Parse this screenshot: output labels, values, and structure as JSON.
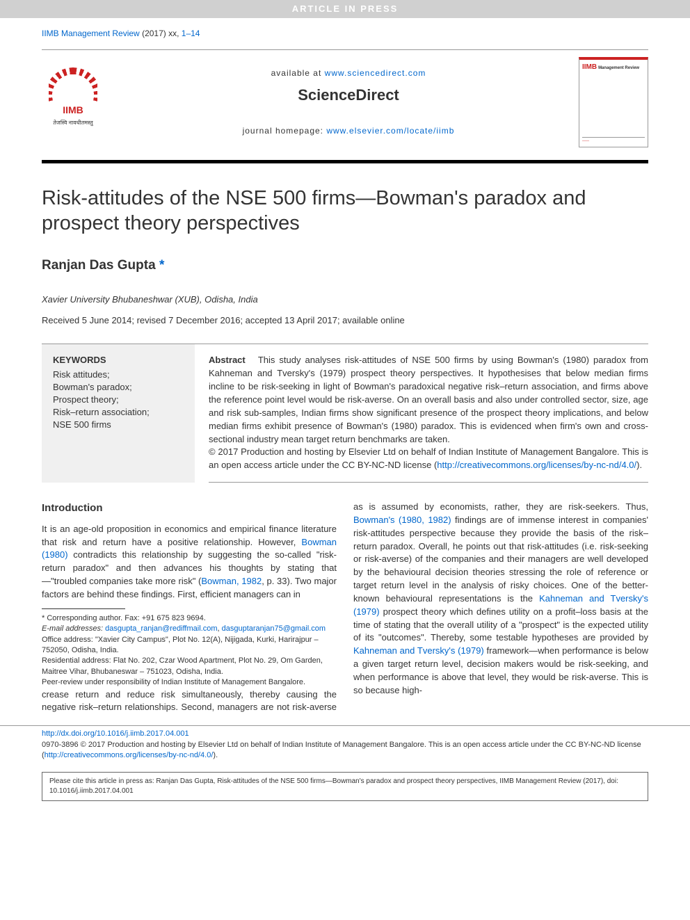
{
  "banner": "ARTICLE IN PRESS",
  "journal_ref": {
    "name": "IIMB Management Review",
    "year": "(2017)",
    "vol": "xx",
    "pages": "1–14"
  },
  "header": {
    "available_prefix": "available at ",
    "available_link": "www.sciencedirect.com",
    "brand": "ScienceDirect",
    "homepage_prefix": "journal homepage: ",
    "homepage_link": "www.elsevier.com/locate/iimb",
    "logo_name": "IIMB",
    "logo_tagline": "तेजस्वि नावधीतमस्तु",
    "cover_title": "IIMB",
    "cover_sub": "Management Review"
  },
  "article": {
    "title": "Risk-attitudes of the NSE 500 firms—Bowman's paradox and prospect theory perspectives",
    "author": "Ranjan Das Gupta",
    "asterisk": "*",
    "affiliation": "Xavier University Bhubaneshwar (XUB), Odisha, India",
    "dates": "Received 5 June 2014; revised 7 December 2016; accepted 13 April 2017; available online"
  },
  "keywords": {
    "heading": "KEYWORDS",
    "items": "Risk attitudes;\nBowman's paradox;\nProspect theory;\nRisk–return association;\nNSE 500 firms"
  },
  "abstract": {
    "label": "Abstract",
    "body": "This study analyses risk-attitudes of NSE 500 firms by using Bowman's (1980) paradox from Kahneman and Tversky's (1979) prospect theory perspectives. It hypothesises that below median firms incline to be risk-seeking in light of Bowman's paradoxical negative risk–return association, and firms above the reference point level would be risk-averse. On an overall basis and also under controlled sector, size, age and risk sub-samples, Indian firms show significant presence of the prospect theory implications, and below median firms exhibit presence of Bowman's (1980) paradox. This is evidenced when firm's own and cross-sectional industry mean target return benchmarks are taken.",
    "copyright": "© 2017 Production and hosting by Elsevier Ltd on behalf of Indian Institute of Management Bangalore. This is an open access article under the CC BY-NC-ND license (",
    "cc_link": "http://creativecommons.org/licenses/by-nc-nd/4.0/",
    "copyright_close": ")."
  },
  "intro": {
    "heading": "Introduction",
    "p1a": "It is an age-old proposition in economics and empirical finance literature that risk and return have a positive relationship. However, ",
    "p1_link1": "Bowman (1980)",
    "p1b": " contradicts this relationship by suggesting the so-called \"risk-return paradox\" and then advances his thoughts by stating that—\"troubled companies take more risk\" (",
    "p1_link2": "Bowman, 1982",
    "p1c": ", p. 33). Two major factors are behind these findings. First, efficient managers can in",
    "p2a": "crease return and reduce risk simultaneously, thereby causing the negative risk–return relationships. Second, managers are not risk-averse as is assumed by economists, rather, they are risk-seekers. Thus, ",
    "p2_link1": "Bowman's (1980, 1982)",
    "p2b": " findings are of immense interest in companies' risk-attitudes perspective because they provide the basis of the risk–return paradox. Overall, he points out that risk-attitudes (i.e. risk-seeking or risk-averse) of the companies and their managers are well developed by the behavioural decision theories stressing the role of reference or target return level in the analysis of risky choices. One of the better-known behavioural representations is the ",
    "p2_link2": "Kahneman and Tversky's (1979)",
    "p2c": " prospect theory which defines utility on a profit–loss basis at the time of stating that the overall utility of a \"prospect\" is the expected utility of its \"outcomes\". Thereby, some testable hypotheses are provided by ",
    "p2_link3": "Kahneman and Tversky's (1979)",
    "p2d": " framework—when performance is below a given target return level, decision makers would be risk-seeking, and when performance is above that level, they would be risk-averse. This is so because high-"
  },
  "footnotes": {
    "corr": "* Corresponding author. Fax: +91 675 823 9694.",
    "email_label": "E-mail addresses:",
    "email1": "dasgupta_ranjan@rediffmail.com",
    "email_sep": ", ",
    "email2": "dasguptaranjan75@gmail.com",
    "office": "Office address: \"Xavier City Campus\", Plot No. 12(A), Nijigada, Kurki, Harirajpur – 752050, Odisha, India.",
    "residential": "Residential address: Flat No. 202, Czar Wood Apartment, Plot No. 29, Om Garden, Maitree Vihar, Bhubaneswar – 751023, Odisha, India.",
    "peer": "Peer-review under responsibility of Indian Institute of Management Bangalore."
  },
  "doi": {
    "link": "http://dx.doi.org/10.1016/j.iimb.2017.04.001",
    "issn": "0970-3896 © 2017 Production and hosting by Elsevier Ltd on behalf of Indian Institute of Management Bangalore. This is an open access article under the CC BY-NC-ND license (",
    "cc_link": "http://creativecommons.org/licenses/by-nc-nd/4.0/",
    "close": ")."
  },
  "cite": {
    "text": "Please cite this article in press as: Ranjan Das Gupta, Risk-attitudes of the NSE 500 firms—Bowman's paradox and prospect theory perspectives, IIMB Management Review (2017), doi: 10.1016/j.iimb.2017.04.001"
  },
  "colors": {
    "link": "#0066cc",
    "banner_bg": "#d0d0d0",
    "keyword_bg": "#f0f0f0",
    "accent_red": "#c22222"
  }
}
